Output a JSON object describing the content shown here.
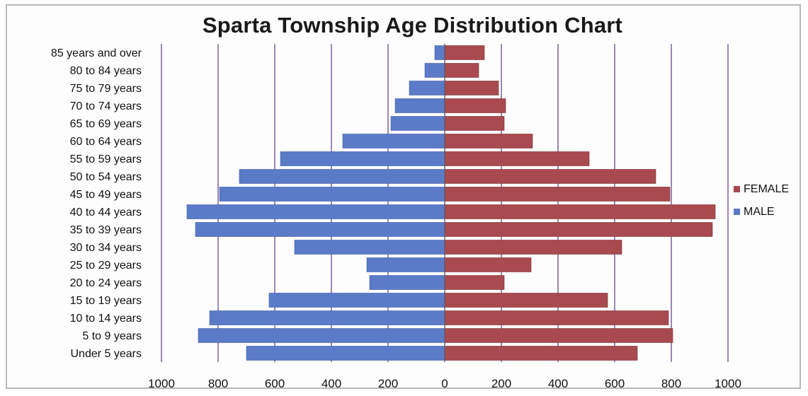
{
  "chart_data": {
    "type": "bar",
    "orientation": "horizontal",
    "title": "Sparta Township Age Distribution Chart",
    "categories": [
      "Under 5 years",
      "5 to 9 years",
      "10 to 14 years",
      "15 to 19 years",
      "20 to 24 years",
      "25 to 29 years",
      "30 to 34 years",
      "35 to 39 years",
      "40 to 44 years",
      "45 to 49 years",
      "50 to 54 years",
      "55 to 59 years",
      "60 to 64 years",
      "65 to 69 years",
      "70 to 74 years",
      "75 to 79 years",
      "80 to 84 years",
      "85 years and over"
    ],
    "series": [
      {
        "name": "MALE",
        "color": "#5b7bc8",
        "values": [
          700,
          870,
          830,
          620,
          265,
          275,
          530,
          880,
          910,
          795,
          725,
          580,
          360,
          190,
          175,
          125,
          70,
          35
        ]
      },
      {
        "name": "FEMALE",
        "color": "#a84a4f",
        "values": [
          680,
          805,
          790,
          575,
          210,
          305,
          625,
          945,
          955,
          795,
          745,
          510,
          310,
          210,
          215,
          190,
          120,
          140
        ]
      }
    ],
    "xlim": [
      -1000,
      1000
    ],
    "tick_labels": [
      "1000",
      "800",
      "600",
      "400",
      "200",
      "0",
      "200",
      "400",
      "600",
      "800",
      "1000"
    ],
    "grid": true,
    "legend_position": "right"
  }
}
